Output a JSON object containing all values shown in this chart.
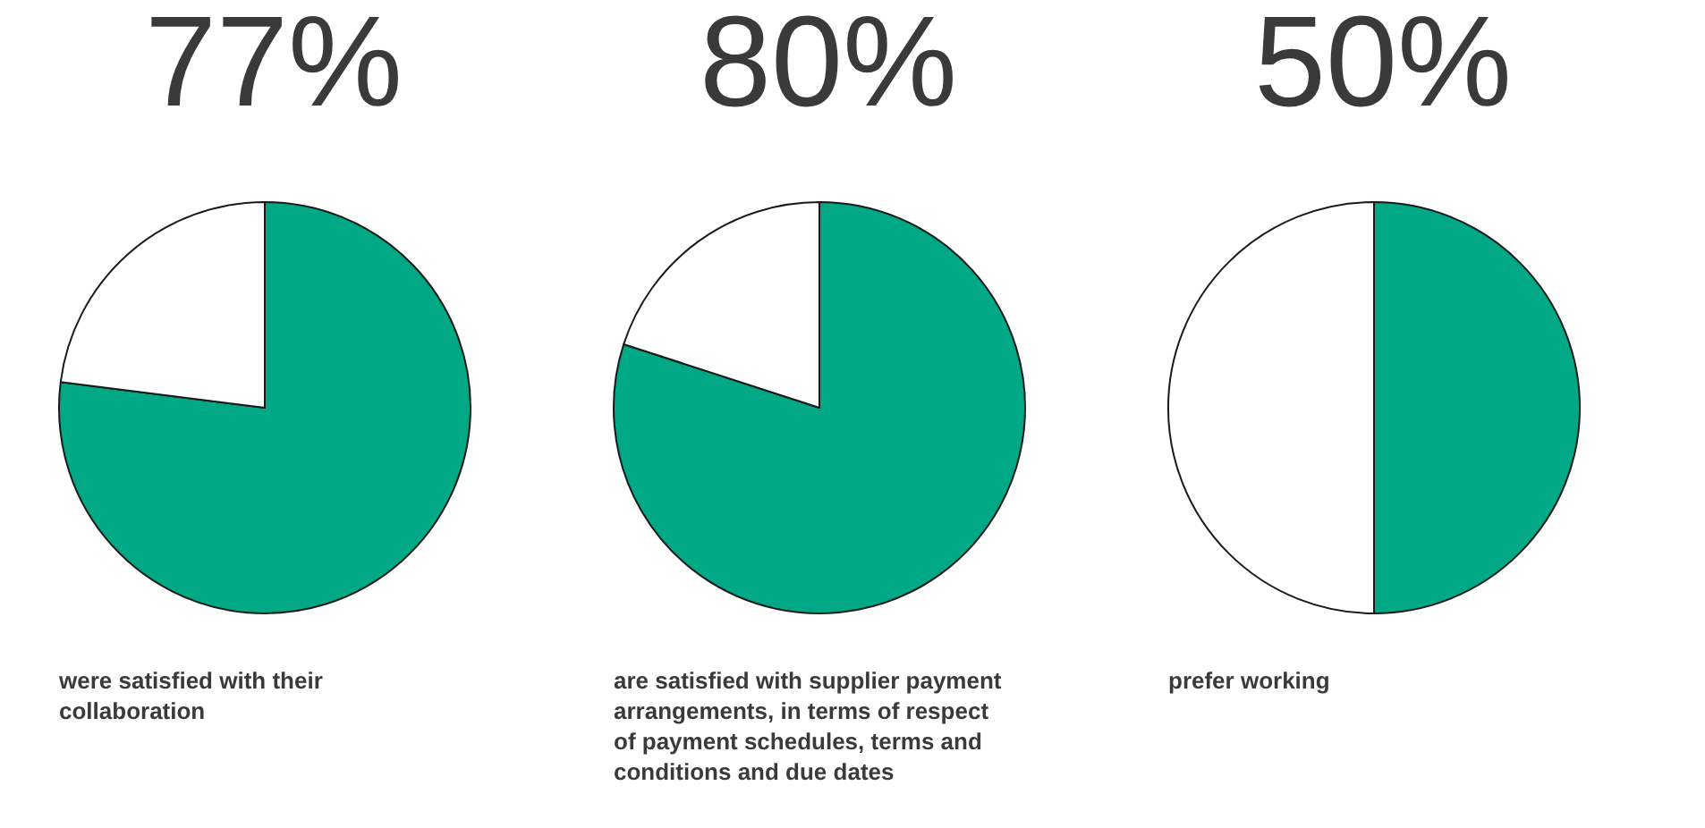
{
  "chart_data": [
    {
      "type": "pie",
      "title": "77%",
      "categories": [
        null,
        null
      ],
      "values": [
        77,
        23
      ],
      "colors": [
        "#00a886",
        "#ffffff"
      ],
      "annotations": [
        "were satisfied with their collaboration"
      ]
    },
    {
      "type": "pie",
      "title": "80%",
      "categories": [
        null,
        null
      ],
      "values": [
        80,
        20
      ],
      "colors": [
        "#00a886",
        "#ffffff"
      ],
      "annotations": [
        "are satisfied with supplier payment arrangements, in terms of respect of payment schedules, terms and conditions and due dates"
      ]
    },
    {
      "type": "pie",
      "title": "50%",
      "categories": [
        null,
        null
      ],
      "values": [
        50,
        50
      ],
      "colors": [
        "#00a886",
        "#ffffff"
      ],
      "annotations": [
        "prefer working"
      ]
    }
  ]
}
